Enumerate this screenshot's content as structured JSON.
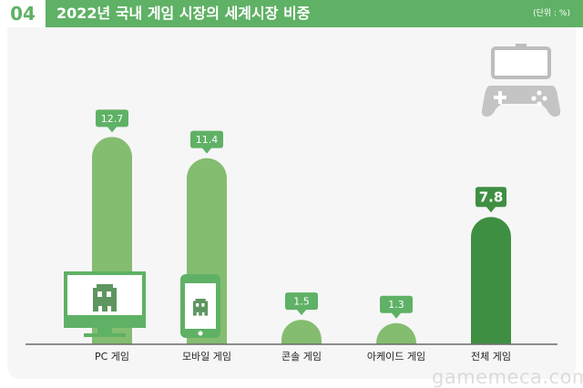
{
  "header": {
    "number": "04",
    "title": "2022년 국내 게임 시장의 세계시장 비중",
    "unit": "(단위 : %)"
  },
  "colors": {
    "accent": "#5fb165",
    "bar_light": "#84bd70",
    "bar_dark": "#3f8f43",
    "background": "#f6f6f6"
  },
  "chart_data": {
    "type": "bar",
    "title": "2022년 국내 게임 시장의 세계시장 비중",
    "unit": "%",
    "xlabel": "",
    "ylabel": "",
    "categories": [
      "PC 게임",
      "모바일 게임",
      "콘솔 게임",
      "아케이드 게임",
      "전체 게임"
    ],
    "values": [
      12.7,
      11.4,
      1.5,
      1.3,
      7.8
    ],
    "value_labels": [
      "12.7",
      "11.4",
      "1.5",
      "1.3",
      "7.8"
    ],
    "highlighted": "전체 게임",
    "ylim": [
      0,
      13
    ],
    "grid": false,
    "legend": "none"
  },
  "icons": [
    "gamepad-phone-icon",
    "monitor-icon",
    "smartphone-icon",
    "pixel-ghost-icon"
  ],
  "watermark": "gamemeca.com"
}
